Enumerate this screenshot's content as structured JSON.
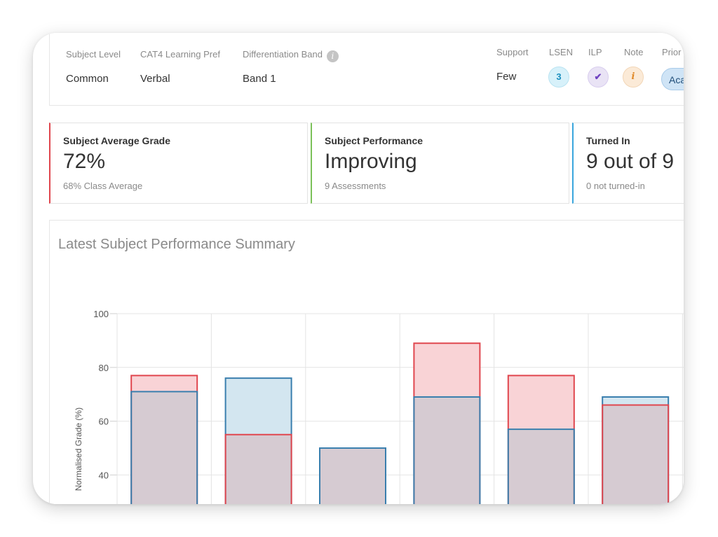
{
  "info": {
    "subject_level_label": "Subject Level",
    "subject_level_value": "Common",
    "cat4_label": "CAT4 Learning Pref",
    "cat4_value": "Verbal",
    "diff_band_label": "Differentiation Band",
    "diff_band_value": "Band 1",
    "support_label": "Support",
    "support_value": "Few",
    "lsen_label": "LSEN",
    "lsen_value": "3",
    "ilp_label": "ILP",
    "ilp_icon": "checkmark-icon",
    "ilp_glyph": "✔",
    "note_label": "Note",
    "note_glyph": "i",
    "priority_label": "Prior",
    "priority_button": "Aca",
    "info_glyph": "i"
  },
  "cards": [
    {
      "title": "Subject Average Grade",
      "value": "72%",
      "sub": "68%  Class Average",
      "accent": "#e0464e"
    },
    {
      "title": "Subject Performance",
      "value": "Improving",
      "sub": "9  Assessments",
      "accent": "#7cc15a"
    },
    {
      "title": "Turned In",
      "value": "9 out of 9",
      "sub": "0  not turned-in",
      "accent": "#3aa6dd"
    }
  ],
  "chart_title": "Latest Subject Performance Summary",
  "chart_data": {
    "type": "bar",
    "ylabel": "Normalised Grade (%)",
    "ylim_visible": [
      33,
      100
    ],
    "yticks": [
      40,
      60,
      80,
      100
    ],
    "grid": true,
    "series": [
      {
        "color_stroke": "#e0464e",
        "color_fill": "#f9d3d6",
        "values": [
          77,
          55,
          null,
          89,
          77,
          66
        ]
      },
      {
        "color_stroke": "#3a7fae",
        "color_fill": "#d3e6f0",
        "values": [
          71,
          76,
          50,
          69,
          57,
          69
        ]
      }
    ],
    "overlap_fill": "#d6cbd2"
  }
}
